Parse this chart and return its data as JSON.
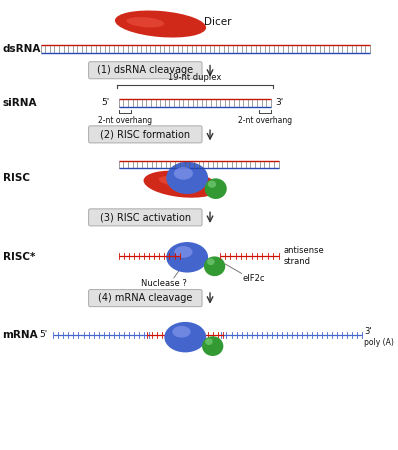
{
  "bg_color": "#ffffff",
  "fig_width": 3.98,
  "fig_height": 4.5,
  "dpi": 100,
  "labels": {
    "dsRNA": "dsRNA",
    "siRNA": "siRNA",
    "RISC": "RISC",
    "RISC_star": "RISC*",
    "mRNA": "mRNA",
    "dicer": "Dicer",
    "step1": "(1) dsRNA cleavage",
    "step2": "(2) RISC formation",
    "step3": "(3) RISC activation",
    "step4": "(4) mRNA cleavage",
    "duplex": "19-nt duplex",
    "overhang_left": "2-nt overhang",
    "overhang_right": "2-nt overhang",
    "five_prime_sirna": "5'",
    "three_prime_sirna": "3'",
    "antisense": "antisense\nstrand",
    "eIF2c": "eIF2c",
    "nuclease": "Nuclease ?",
    "five_prime_mrna": "5'",
    "three_prime_mrna": "3'",
    "poly_a": "poly (A)"
  },
  "colors": {
    "red_dark": "#cc1100",
    "red_light": "#ee5544",
    "blue_dark": "#2244bb",
    "blue_mid": "#4466cc",
    "blue_light": "#8899ee",
    "green_dark": "#339933",
    "green_light": "#77cc77",
    "arrow": "#333333",
    "text": "#111111",
    "box_bg": "#e0e0e0",
    "box_edge": "#aaaaaa",
    "tick": "#555555"
  }
}
